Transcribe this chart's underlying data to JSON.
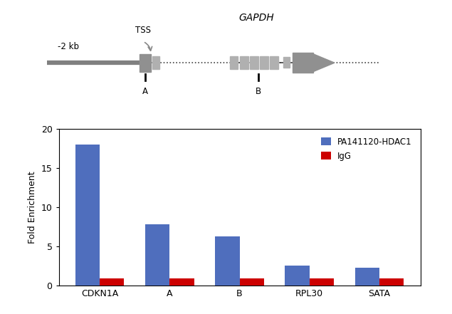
{
  "categories": [
    "CDKN1A",
    "A",
    "B",
    "RPL30",
    "SATA"
  ],
  "hdac1_values": [
    18.0,
    7.8,
    6.3,
    2.6,
    2.3
  ],
  "igg_values": [
    0.9,
    0.9,
    0.9,
    0.9,
    0.9
  ],
  "hdac1_color": "#4F6EBD",
  "igg_color": "#CC0000",
  "ylabel": "Fold Enrichment",
  "ylim": [
    0,
    20
  ],
  "yticks": [
    0,
    5,
    10,
    15,
    20
  ],
  "legend_hdac1": "PA141120-HDAC1",
  "legend_igg": "IgG",
  "bar_width": 0.35,
  "title_diagram": "GAPDH",
  "label_2kb": "-2 kb",
  "label_tss": "TSS",
  "label_A": "A",
  "label_B": "B",
  "gene_line_color": "#808080",
  "box_color": "#909090",
  "box_color_light": "#b0b0b0",
  "background_color": "#ffffff"
}
